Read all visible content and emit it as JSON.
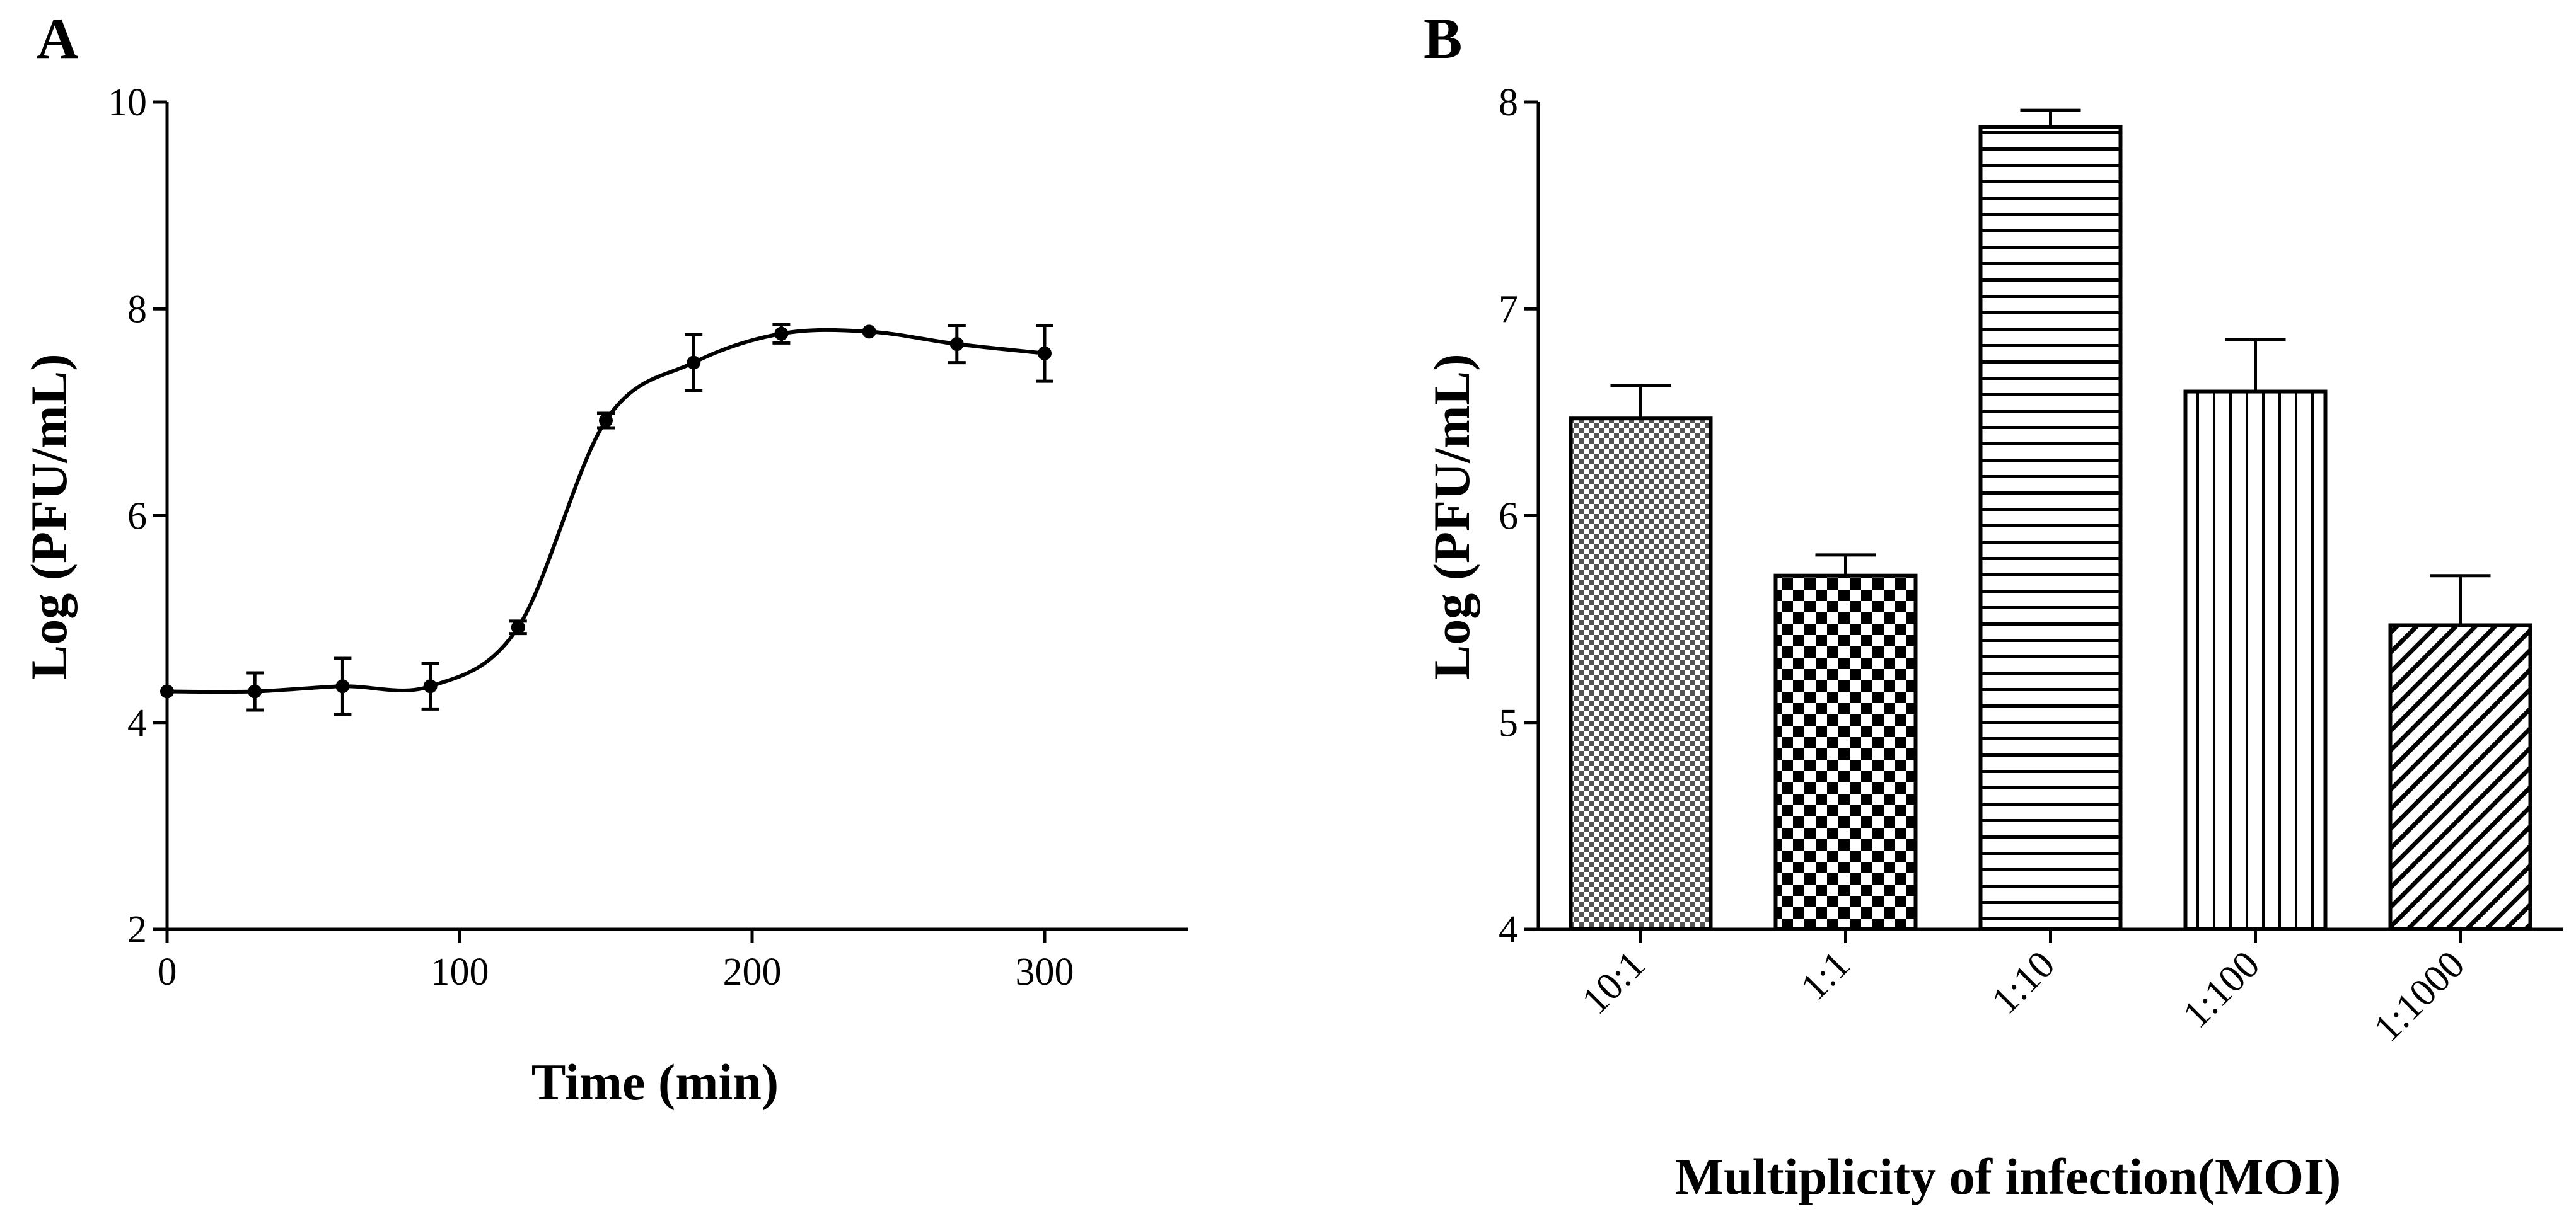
{
  "chart_data": [
    {
      "panel": "A",
      "type": "line",
      "xlabel": "Time (min)",
      "ylabel": "Log (PFU/mL)",
      "xlim": [
        0,
        350
      ],
      "ylim": [
        2,
        10
      ],
      "xticks": [
        "0",
        "100",
        "200",
        "300"
      ],
      "yticks": [
        "2",
        "4",
        "6",
        "8",
        "10"
      ],
      "grid": false,
      "series": [
        {
          "x": [
            0,
            30,
            60,
            90,
            120,
            150,
            180,
            210,
            240,
            270,
            300
          ],
          "y": [
            4.3,
            4.3,
            4.35,
            4.35,
            4.92,
            6.92,
            7.48,
            7.76,
            7.78,
            7.66,
            7.57
          ],
          "error": [
            0.0,
            0.18,
            0.27,
            0.22,
            0.06,
            0.07,
            0.27,
            0.09,
            0.0,
            0.18,
            0.27
          ]
        }
      ]
    },
    {
      "panel": "B",
      "type": "bar",
      "xlabel": "Multiplicity of infection(MOI)",
      "ylabel": "Log (PFU/mL)",
      "ylim": [
        4,
        8
      ],
      "yticks": [
        "4",
        "5",
        "6",
        "7",
        "8"
      ],
      "grid": false,
      "categories": [
        "10:1",
        "1:1",
        "1:10",
        "1:100",
        "1:1000"
      ],
      "values": [
        6.47,
        5.71,
        7.88,
        6.6,
        5.47
      ],
      "error": [
        0.16,
        0.1,
        0.08,
        0.25,
        0.24
      ],
      "patterns": [
        "fine-checker",
        "coarse-checker",
        "horizontal-lines",
        "vertical-lines",
        "diagonal-lines"
      ]
    }
  ]
}
